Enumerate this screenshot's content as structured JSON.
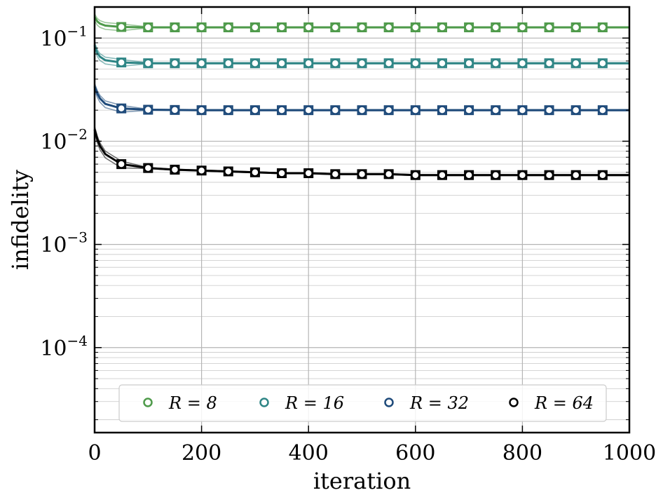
{
  "chart_data": {
    "type": "line",
    "xlabel": "iteration",
    "ylabel": "infidelity",
    "xlim": [
      0,
      1000
    ],
    "ylim": [
      1.5e-05,
      0.2
    ],
    "yscale": "log",
    "grid": true,
    "legend_position": "bottom",
    "x_ticks": [
      "0",
      "200",
      "400",
      "600",
      "800",
      "1000"
    ],
    "y_ticks": [
      {
        "value": 0.1,
        "base": "10",
        "exp": "−1"
      },
      {
        "value": 0.01,
        "base": "10",
        "exp": "−2"
      },
      {
        "value": 0.001,
        "base": "10",
        "exp": "−3"
      },
      {
        "value": 0.0001,
        "base": "10",
        "exp": "−4"
      }
    ],
    "x": [
      0,
      5,
      10,
      20,
      50,
      100,
      150,
      200,
      250,
      300,
      350,
      400,
      450,
      500,
      550,
      600,
      650,
      700,
      750,
      800,
      850,
      900,
      950,
      1000
    ],
    "series": [
      {
        "name": "R = 8",
        "color": "#4e9a4a",
        "values": [
          0.16,
          0.145,
          0.138,
          0.132,
          0.128,
          0.127,
          0.127,
          0.127,
          0.127,
          0.127,
          0.127,
          0.127,
          0.127,
          0.127,
          0.127,
          0.127,
          0.127,
          0.127,
          0.127,
          0.127,
          0.127,
          0.127,
          0.127,
          0.127
        ]
      },
      {
        "name": "R = 16",
        "color": "#2e8585",
        "values": [
          0.085,
          0.072,
          0.066,
          0.061,
          0.058,
          0.057,
          0.057,
          0.057,
          0.057,
          0.057,
          0.057,
          0.057,
          0.057,
          0.057,
          0.057,
          0.057,
          0.057,
          0.057,
          0.057,
          0.057,
          0.057,
          0.057,
          0.057,
          0.057
        ]
      },
      {
        "name": "R = 32",
        "color": "#1e4a7a",
        "values": [
          0.034,
          0.029,
          0.026,
          0.023,
          0.0208,
          0.0202,
          0.0201,
          0.02,
          0.02,
          0.02,
          0.02,
          0.02,
          0.02,
          0.02,
          0.02,
          0.02,
          0.02,
          0.02,
          0.02,
          0.02,
          0.02,
          0.02,
          0.02,
          0.02
        ]
      },
      {
        "name": "R = 64",
        "color": "#000000",
        "values": [
          0.013,
          0.0105,
          0.009,
          0.0075,
          0.006,
          0.0055,
          0.0053,
          0.0052,
          0.0051,
          0.005,
          0.0049,
          0.0049,
          0.0048,
          0.0048,
          0.0048,
          0.0047,
          0.0047,
          0.0047,
          0.0047,
          0.0047,
          0.0047,
          0.0047,
          0.0047,
          0.0047
        ]
      }
    ]
  }
}
